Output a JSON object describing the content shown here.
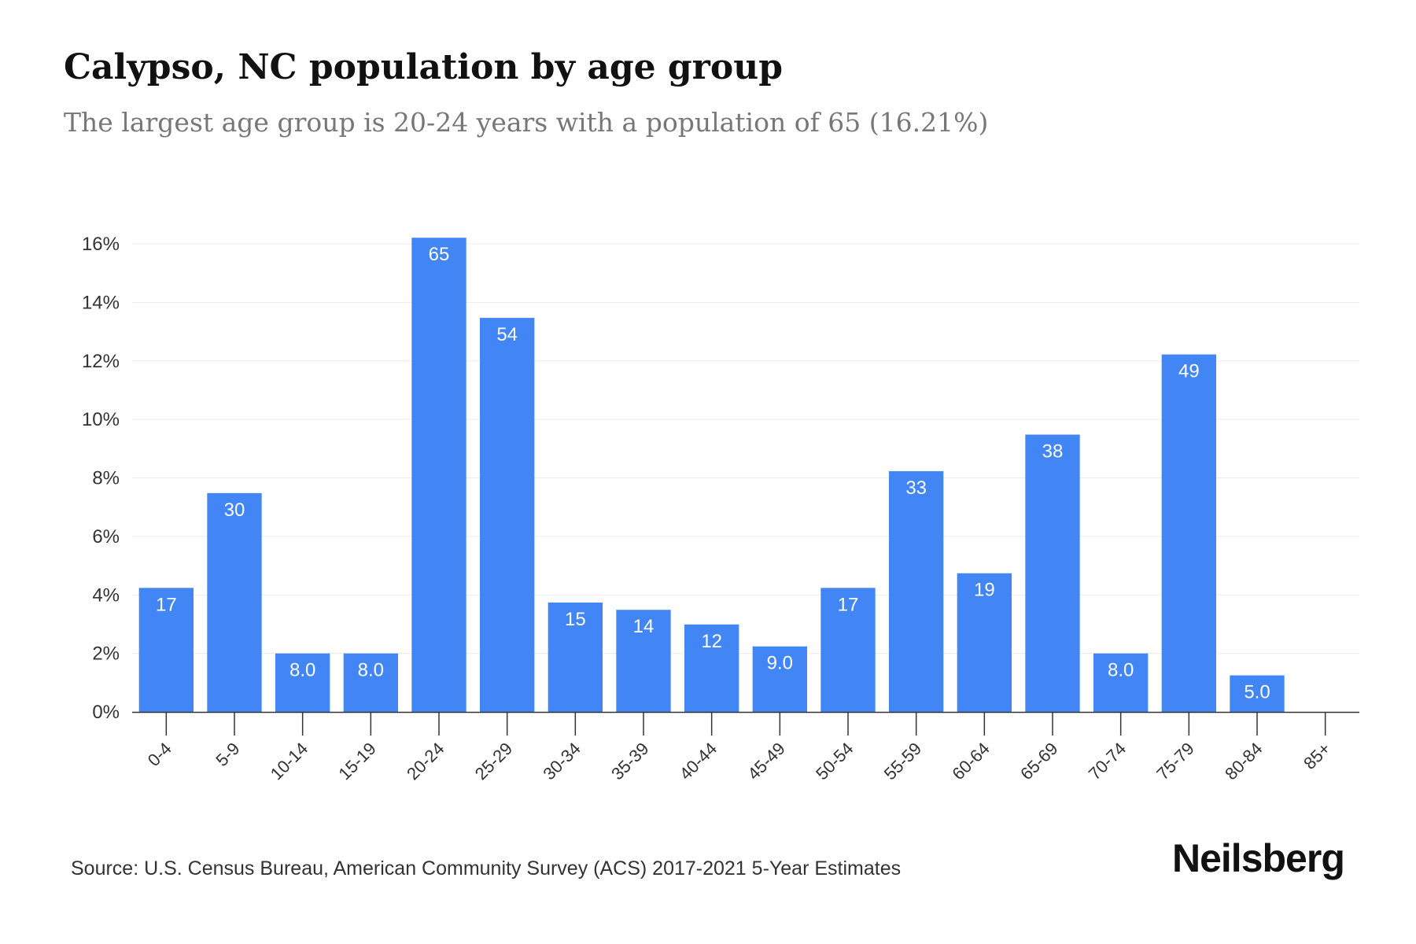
{
  "chart_data": {
    "type": "bar",
    "title": "Calypso, NC population by age group",
    "subtitle": "The largest age group is 20-24 years with a population of 65 (16.21%)",
    "xlabel": "",
    "ylabel": "",
    "categories": [
      "0-4",
      "5-9",
      "10-14",
      "15-19",
      "20-24",
      "25-29",
      "30-34",
      "35-39",
      "40-44",
      "45-49",
      "50-54",
      "55-59",
      "60-64",
      "65-69",
      "70-74",
      "75-79",
      "80-84",
      "85+"
    ],
    "values": [
      4.24,
      7.48,
      2.0,
      2.0,
      16.21,
      13.47,
      3.74,
      3.49,
      2.99,
      2.24,
      4.24,
      8.23,
      4.74,
      9.48,
      2.0,
      12.22,
      1.25,
      0
    ],
    "bar_labels": [
      "17",
      "30",
      "8.0",
      "8.0",
      "65",
      "54",
      "15",
      "14",
      "12",
      "9.0",
      "17",
      "33",
      "19",
      "38",
      "8.0",
      "49",
      "5.0",
      ""
    ],
    "ylim": [
      0,
      16
    ],
    "yticks": [
      "0%",
      "2%",
      "4%",
      "6%",
      "8%",
      "10%",
      "12%",
      "14%",
      "16%"
    ],
    "grid": true,
    "bar_color": "#4285f4"
  },
  "footer": {
    "source": "Source: U.S. Census Bureau, American Community Survey (ACS) 2017-2021 5-Year Estimates",
    "logo": "Neilsberg"
  }
}
